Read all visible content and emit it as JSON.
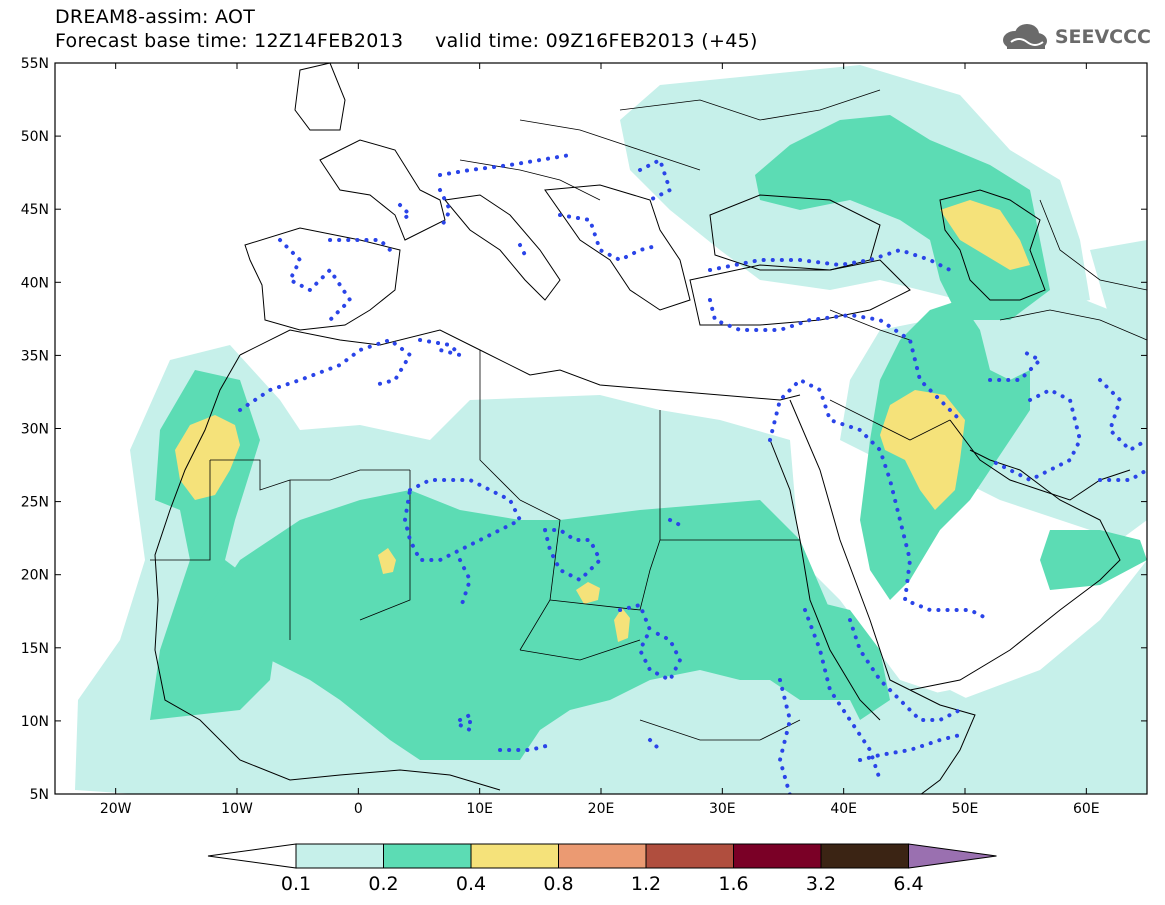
{
  "header": {
    "title_line1": "DREAM8-assim: AOT",
    "title_line2": "Forecast base time: 12Z14FEB2013     valid time: 09Z16FEB2013 (+45)",
    "logo_text": "SEEVCCC"
  },
  "map": {
    "lon_range": [
      -25,
      65
    ],
    "lat_range": [
      5,
      55
    ],
    "lat_ticks": [
      {
        "value": 55,
        "label": "55N"
      },
      {
        "value": 50,
        "label": "50N"
      },
      {
        "value": 45,
        "label": "45N"
      },
      {
        "value": 40,
        "label": "40N"
      },
      {
        "value": 35,
        "label": "35N"
      },
      {
        "value": 30,
        "label": "30N"
      },
      {
        "value": 25,
        "label": "25N"
      },
      {
        "value": 20,
        "label": "20N"
      },
      {
        "value": 15,
        "label": "15N"
      },
      {
        "value": 10,
        "label": "10N"
      },
      {
        "value": 5,
        "label": "5N"
      }
    ],
    "lon_ticks": [
      {
        "value": -20,
        "label": "20W"
      },
      {
        "value": -10,
        "label": "10W"
      },
      {
        "value": 0,
        "label": "0"
      },
      {
        "value": 10,
        "label": "10E"
      },
      {
        "value": 20,
        "label": "20E"
      },
      {
        "value": 30,
        "label": "30E"
      },
      {
        "value": 40,
        "label": "40E"
      },
      {
        "value": 50,
        "label": "50E"
      },
      {
        "value": 60,
        "label": "60E"
      }
    ]
  },
  "colorbar": {
    "levels": [
      "0.1",
      "0.2",
      "0.4",
      "0.8",
      "1.2",
      "1.6",
      "3.2",
      "6.4"
    ],
    "colors": [
      "#ffffff",
      "#c6f0ea",
      "#5cdcb4",
      "#f5e27a",
      "#eb9a72",
      "#b04e3e",
      "#7a0026",
      "#3b2414",
      "#9a70b0"
    ]
  },
  "colors": {
    "shade_01": "#c6f0ea",
    "shade_02": "#5cdcb4",
    "shade_04": "#f5e27a",
    "dotted_contour": "#2a44e8"
  }
}
